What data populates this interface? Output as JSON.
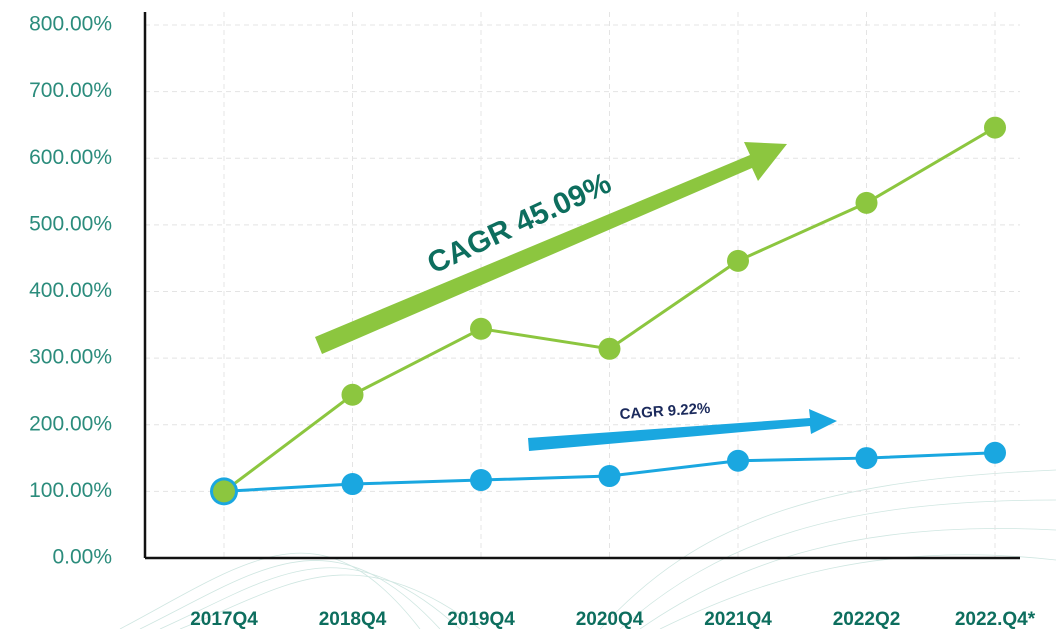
{
  "chart_data": {
    "type": "line",
    "categories": [
      "2017Q4",
      "2018Q4",
      "2019Q4",
      "2020Q4",
      "2021Q4",
      "2022Q2",
      "2022.Q4*"
    ],
    "series": [
      {
        "color": "#1aa7e0",
        "values": [
          100,
          111,
          117,
          123,
          146,
          150,
          158
        ]
      },
      {
        "color": "#8cc63f",
        "values": [
          100,
          245,
          344,
          314,
          446,
          533,
          646
        ]
      }
    ],
    "ylim": [
      0,
      800
    ],
    "yticks": [
      {
        "value": 0,
        "label": "0.00%"
      },
      {
        "value": 100,
        "label": "100.00%"
      },
      {
        "value": 200,
        "label": "200.00%"
      },
      {
        "value": 300,
        "label": "300.00%"
      },
      {
        "value": 400,
        "label": "400.00%"
      },
      {
        "value": 500,
        "label": "500.00%"
      },
      {
        "value": 600,
        "label": "600.00%"
      },
      {
        "value": 700,
        "label": "700.00%"
      },
      {
        "value": 800,
        "label": "800.00%"
      }
    ],
    "grid": true,
    "annotations": [
      "CAGR 45.09%",
      "CAGR 9.22%"
    ]
  }
}
